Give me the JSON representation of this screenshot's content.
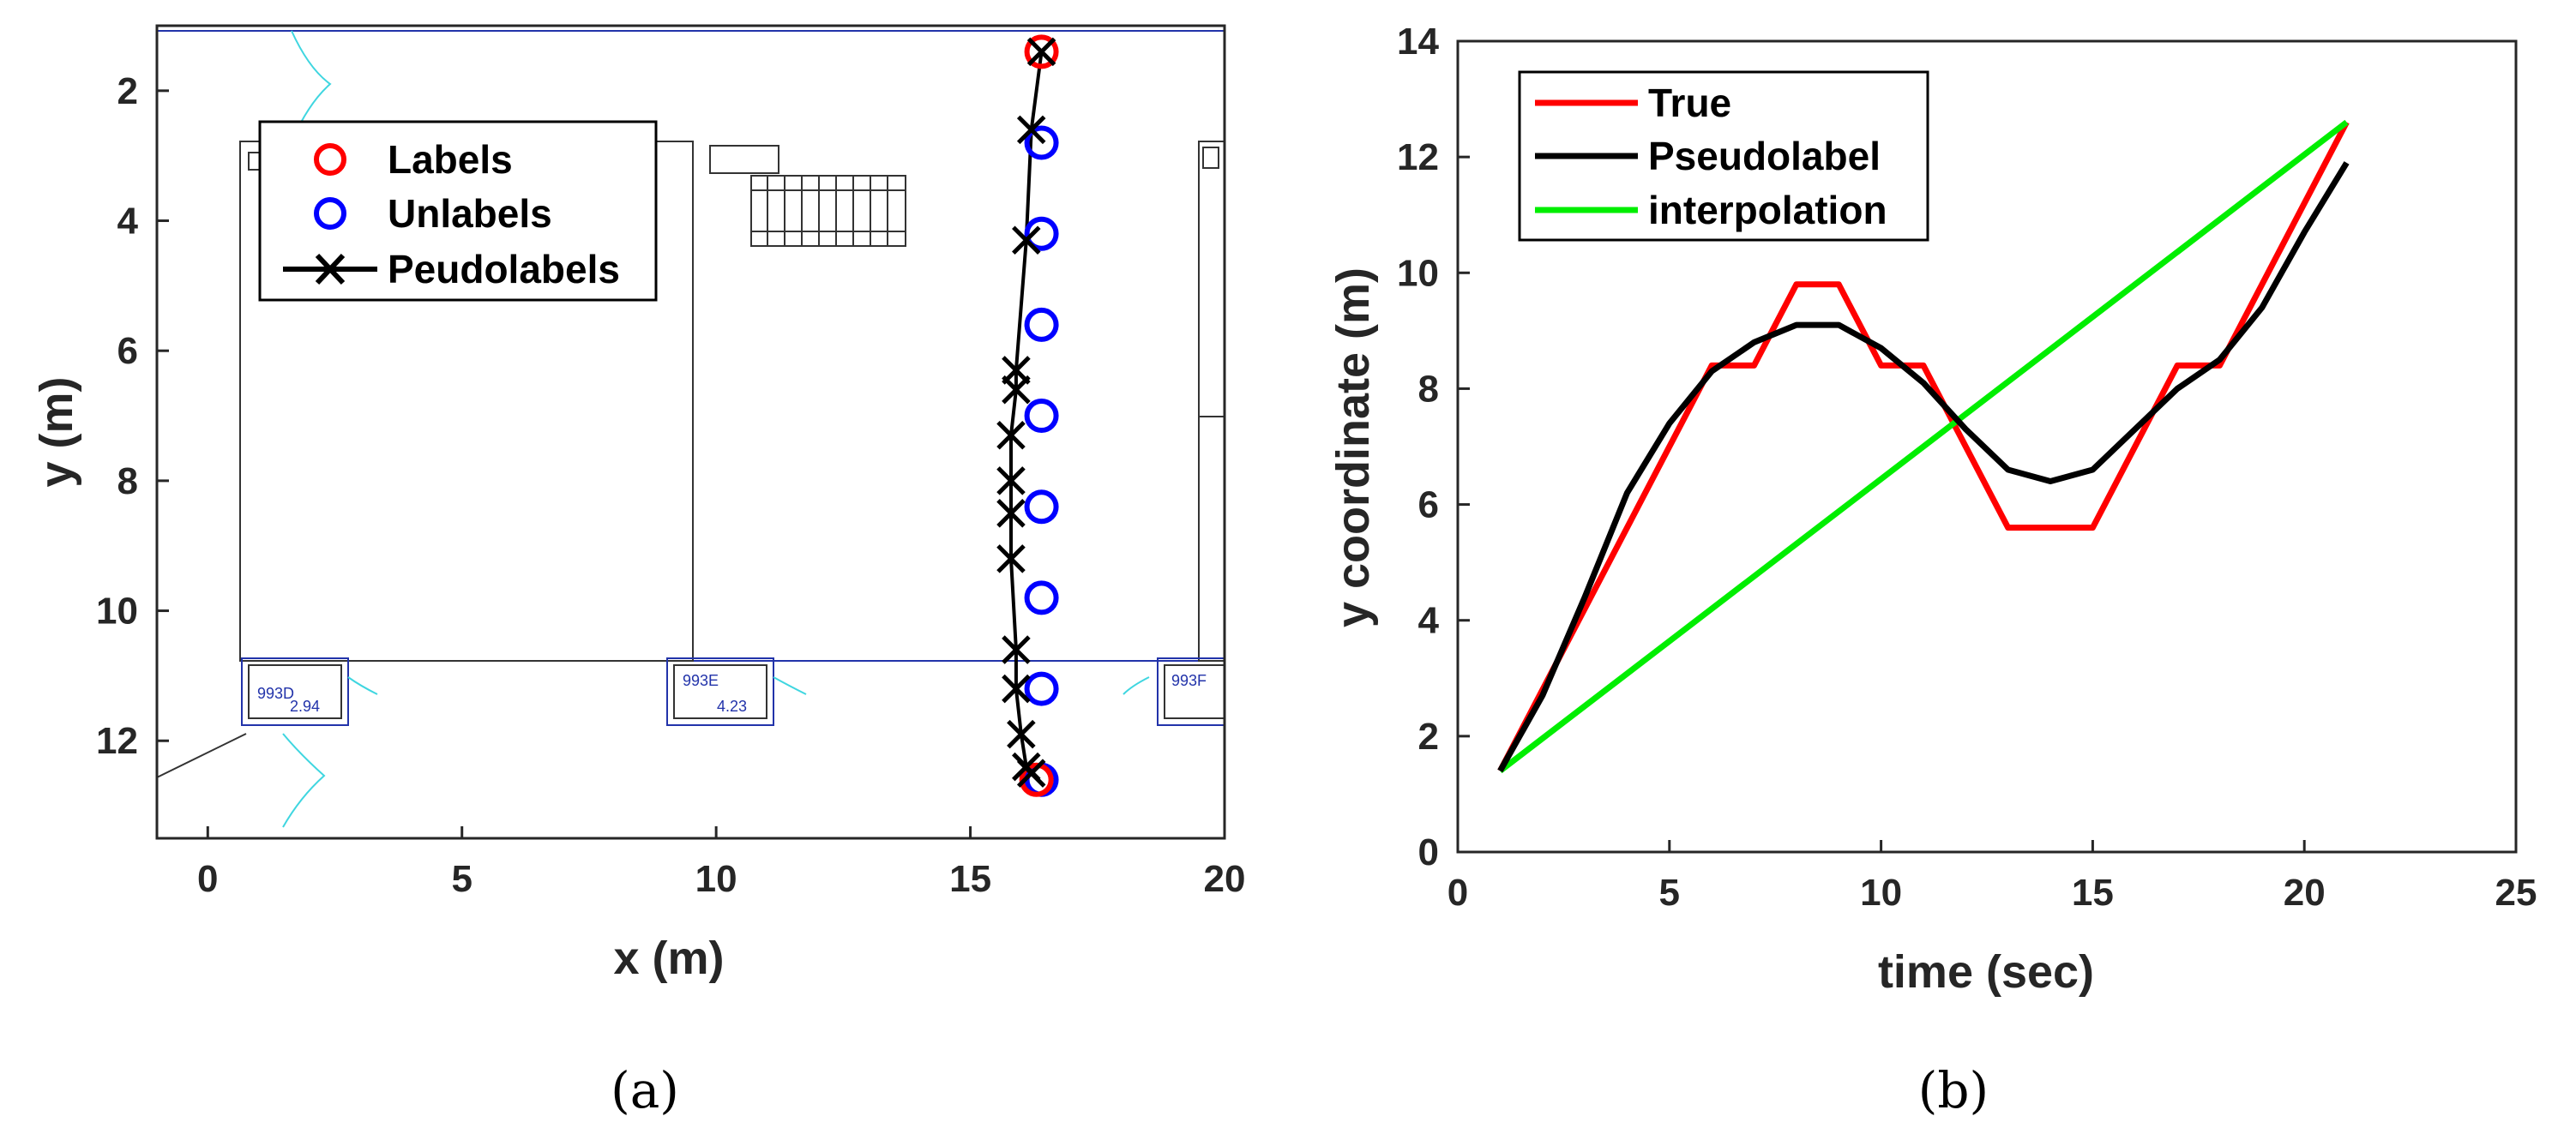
{
  "chart_data": [
    {
      "type": "scatter",
      "panel": "(a)",
      "xlabel": "x (m)",
      "ylabel": "y (m)",
      "xlim": [
        -1,
        20
      ],
      "ylim": [
        1,
        13.5
      ],
      "y_reversed": true,
      "xticks": [
        0,
        5,
        10,
        15,
        20
      ],
      "yticks": [
        2,
        4,
        6,
        8,
        10,
        12
      ],
      "legend_location": "top-left",
      "series": [
        {
          "name": "Labels",
          "marker": "circle",
          "color": "#ff0000",
          "x": [
            16.4,
            16.3
          ],
          "y": [
            1.4,
            12.6
          ]
        },
        {
          "name": "Unlabels",
          "marker": "circle",
          "color": "#0000ff",
          "x": [
            16.4,
            16.4,
            16.4,
            16.4,
            16.4,
            16.4,
            16.4,
            16.4
          ],
          "y": [
            2.8,
            4.2,
            5.6,
            7.0,
            8.4,
            9.8,
            11.2,
            12.6
          ]
        },
        {
          "name": "Peudolabels",
          "marker": "x-line",
          "color": "#000000",
          "x": [
            16.4,
            16.2,
            16.1,
            15.9,
            15.9,
            15.8,
            15.8,
            15.8,
            15.8,
            15.9,
            15.9,
            16.0,
            16.1,
            16.2
          ],
          "y": [
            1.4,
            2.6,
            4.3,
            6.3,
            6.6,
            7.3,
            8.0,
            8.5,
            9.2,
            10.6,
            11.2,
            11.9,
            12.4,
            12.5
          ]
        }
      ],
      "plan_labels": [
        "993D",
        "2.94",
        "993E",
        "4.23",
        "993F"
      ]
    },
    {
      "type": "line",
      "panel": "(b)",
      "xlabel": "time (sec)",
      "ylabel": "y coordinate (m)",
      "xlim": [
        0,
        25
      ],
      "ylim": [
        0,
        14
      ],
      "xticks": [
        0,
        5,
        10,
        15,
        20,
        25
      ],
      "yticks": [
        0,
        2,
        4,
        6,
        8,
        10,
        12,
        14
      ],
      "legend_location": "top-left",
      "series": [
        {
          "name": "True",
          "color": "#ff0000",
          "x": [
            1,
            6,
            7,
            8,
            9,
            10,
            11,
            13,
            15,
            17,
            18,
            21
          ],
          "y": [
            1.4,
            8.4,
            8.4,
            9.8,
            9.8,
            8.4,
            8.4,
            5.6,
            5.6,
            8.4,
            8.4,
            12.6
          ]
        },
        {
          "name": "Pseudolabel",
          "color": "#000000",
          "x": [
            1,
            2,
            3,
            4,
            5,
            6,
            7,
            8,
            9,
            10,
            11,
            12,
            13,
            14,
            15,
            16,
            17,
            18,
            19,
            20,
            21
          ],
          "y": [
            1.4,
            2.7,
            4.4,
            6.2,
            7.4,
            8.3,
            8.8,
            9.1,
            9.1,
            8.7,
            8.1,
            7.3,
            6.6,
            6.4,
            6.6,
            7.3,
            8.0,
            8.5,
            9.4,
            10.7,
            11.9
          ]
        },
        {
          "name": "interpolation",
          "color": "#00ee00",
          "x": [
            1,
            21
          ],
          "y": [
            1.4,
            12.6
          ]
        }
      ]
    }
  ],
  "captions": {
    "a": "(a)",
    "b": "(b)"
  }
}
